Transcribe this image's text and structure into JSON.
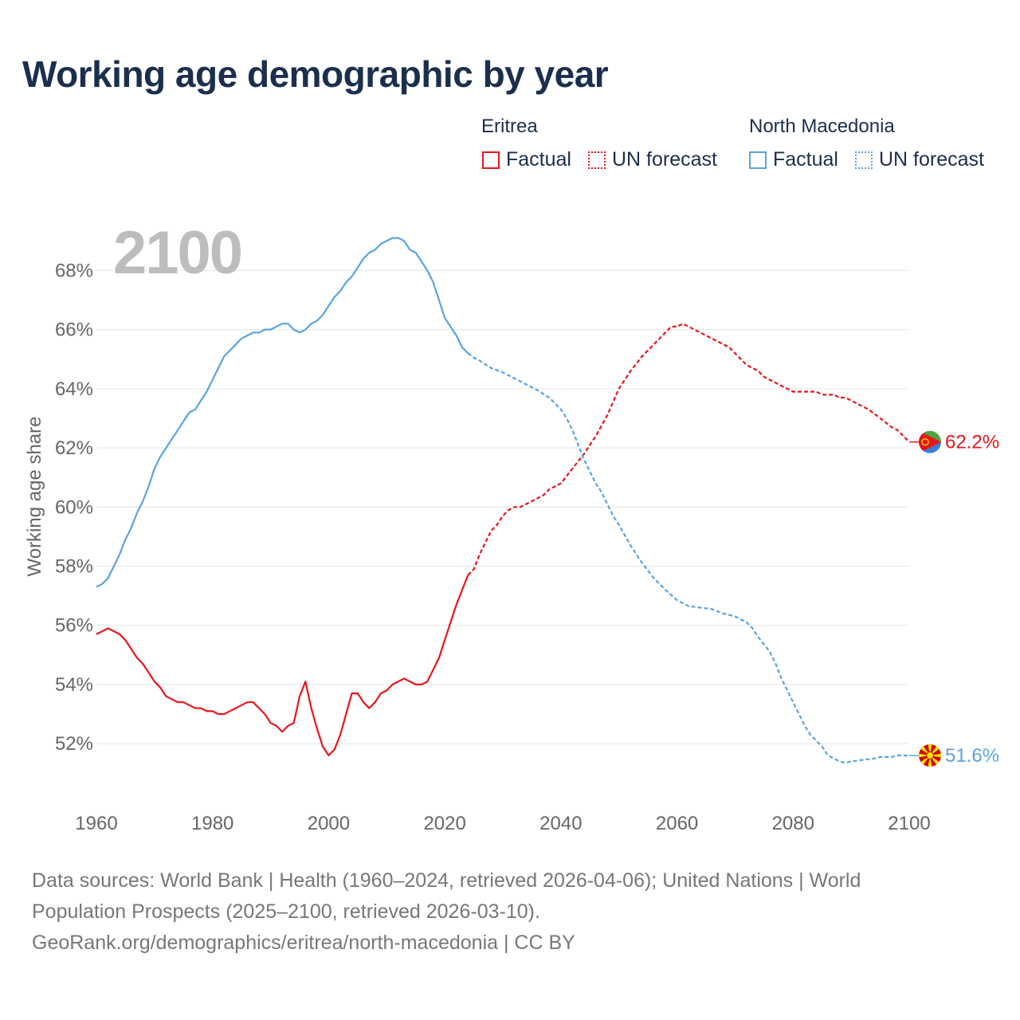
{
  "title": "Working age demographic by year",
  "legend": {
    "groups": [
      {
        "country": "Eritrea",
        "color": "#e8151b",
        "factual_label": "Factual",
        "forecast_label": "UN forecast"
      },
      {
        "country": "North Macedonia",
        "color": "#5aa3e0",
        "factual_label": "Factual",
        "forecast_label": "UN forecast"
      }
    ]
  },
  "footer": {
    "line1": "Data sources: World Bank | Health (1960–2024, retrieved 2026-04-06); United Nations | World",
    "line2": "Population Prospects (2025–2100, retrieved 2026-03-10).",
    "line3": "GeoRank.org/demographics/eritrea/north-macedonia | CC BY"
  },
  "chart_data": {
    "type": "line",
    "title": "Working age demographic by year",
    "year_watermark": "2100",
    "ylabel": "Working age share",
    "xlabel": "",
    "xlim": [
      1960,
      2100
    ],
    "ylim": [
      50.2,
      69.6
    ],
    "x_ticks": [
      1960,
      1980,
      2000,
      2020,
      2040,
      2060,
      2080,
      2100
    ],
    "y_ticks": [
      52,
      54,
      56,
      58,
      60,
      62,
      64,
      66,
      68
    ],
    "y_tick_labels": [
      "52%",
      "54%",
      "56%",
      "58%",
      "60%",
      "62%",
      "64%",
      "66%",
      "68%"
    ],
    "grid": true,
    "factual_until": 2024,
    "series": [
      {
        "name": "Eritrea",
        "color": "#e8151b",
        "end_label": "62.2%",
        "points": [
          [
            1960,
            55.7
          ],
          [
            1962,
            55.9
          ],
          [
            1964,
            55.7
          ],
          [
            1965,
            55.5
          ],
          [
            1967,
            54.9
          ],
          [
            1968,
            54.7
          ],
          [
            1970,
            54.1
          ],
          [
            1971,
            53.9
          ],
          [
            1972,
            53.6
          ],
          [
            1974,
            53.4
          ],
          [
            1975,
            53.4
          ],
          [
            1977,
            53.2
          ],
          [
            1978,
            53.2
          ],
          [
            1979,
            53.1
          ],
          [
            1980,
            53.1
          ],
          [
            1981,
            53.0
          ],
          [
            1982,
            53.0
          ],
          [
            1984,
            53.2
          ],
          [
            1986,
            53.4
          ],
          [
            1987,
            53.4
          ],
          [
            1989,
            53.0
          ],
          [
            1990,
            52.7
          ],
          [
            1991,
            52.6
          ],
          [
            1992,
            52.4
          ],
          [
            1993,
            52.6
          ],
          [
            1994,
            52.7
          ],
          [
            1995,
            53.6
          ],
          [
            1996,
            54.1
          ],
          [
            1997,
            53.2
          ],
          [
            1998,
            52.5
          ],
          [
            1999,
            51.9
          ],
          [
            2000,
            51.6
          ],
          [
            2001,
            51.8
          ],
          [
            2002,
            52.3
          ],
          [
            2003,
            53.0
          ],
          [
            2004,
            53.7
          ],
          [
            2005,
            53.7
          ],
          [
            2006,
            53.4
          ],
          [
            2007,
            53.2
          ],
          [
            2008,
            53.4
          ],
          [
            2009,
            53.7
          ],
          [
            2010,
            53.8
          ],
          [
            2011,
            54.0
          ],
          [
            2013,
            54.2
          ],
          [
            2015,
            54.0
          ],
          [
            2016,
            54.0
          ],
          [
            2017,
            54.1
          ],
          [
            2019,
            54.9
          ],
          [
            2020,
            55.5
          ],
          [
            2022,
            56.7
          ],
          [
            2024,
            57.7
          ],
          [
            2025,
            57.9
          ],
          [
            2026,
            58.4
          ],
          [
            2028,
            59.2
          ],
          [
            2029,
            59.4
          ],
          [
            2030,
            59.7
          ],
          [
            2031,
            59.9
          ],
          [
            2032,
            60.0
          ],
          [
            2033,
            60.0
          ],
          [
            2035,
            60.2
          ],
          [
            2037,
            60.4
          ],
          [
            2038,
            60.6
          ],
          [
            2040,
            60.8
          ],
          [
            2042,
            61.3
          ],
          [
            2044,
            61.8
          ],
          [
            2046,
            62.4
          ],
          [
            2048,
            63.1
          ],
          [
            2050,
            64.0
          ],
          [
            2052,
            64.6
          ],
          [
            2054,
            65.1
          ],
          [
            2056,
            65.5
          ],
          [
            2058,
            65.9
          ],
          [
            2059,
            66.1
          ],
          [
            2060,
            66.1
          ],
          [
            2061,
            66.2
          ],
          [
            2063,
            66.0
          ],
          [
            2065,
            65.8
          ],
          [
            2067,
            65.6
          ],
          [
            2069,
            65.4
          ],
          [
            2071,
            65.0
          ],
          [
            2072,
            64.8
          ],
          [
            2074,
            64.6
          ],
          [
            2075,
            64.4
          ],
          [
            2077,
            64.2
          ],
          [
            2079,
            64.0
          ],
          [
            2080,
            63.9
          ],
          [
            2083,
            63.9
          ],
          [
            2084,
            63.9
          ],
          [
            2085,
            63.8
          ],
          [
            2087,
            63.8
          ],
          [
            2088,
            63.7
          ],
          [
            2089,
            63.7
          ],
          [
            2091,
            63.5
          ],
          [
            2093,
            63.3
          ],
          [
            2095,
            63.0
          ],
          [
            2097,
            62.7
          ],
          [
            2098,
            62.6
          ],
          [
            2099,
            62.4
          ],
          [
            2100,
            62.2
          ]
        ]
      },
      {
        "name": "North Macedonia",
        "color": "#5aa3e0",
        "end_label": "51.6%",
        "points": [
          [
            1960,
            57.3
          ],
          [
            1961,
            57.4
          ],
          [
            1962,
            57.6
          ],
          [
            1963,
            58.0
          ],
          [
            1964,
            58.4
          ],
          [
            1965,
            58.9
          ],
          [
            1966,
            59.3
          ],
          [
            1967,
            59.8
          ],
          [
            1968,
            60.2
          ],
          [
            1969,
            60.7
          ],
          [
            1970,
            61.3
          ],
          [
            1971,
            61.7
          ],
          [
            1972,
            62.0
          ],
          [
            1973,
            62.3
          ],
          [
            1974,
            62.6
          ],
          [
            1975,
            62.9
          ],
          [
            1976,
            63.2
          ],
          [
            1977,
            63.3
          ],
          [
            1978,
            63.6
          ],
          [
            1979,
            63.9
          ],
          [
            1980,
            64.3
          ],
          [
            1981,
            64.7
          ],
          [
            1982,
            65.1
          ],
          [
            1983,
            65.3
          ],
          [
            1984,
            65.5
          ],
          [
            1985,
            65.7
          ],
          [
            1986,
            65.8
          ],
          [
            1987,
            65.9
          ],
          [
            1988,
            65.9
          ],
          [
            1989,
            66.0
          ],
          [
            1990,
            66.0
          ],
          [
            1991,
            66.1
          ],
          [
            1992,
            66.2
          ],
          [
            1993,
            66.2
          ],
          [
            1994,
            66.0
          ],
          [
            1995,
            65.9
          ],
          [
            1996,
            66.0
          ],
          [
            1997,
            66.2
          ],
          [
            1998,
            66.3
          ],
          [
            1999,
            66.5
          ],
          [
            2000,
            66.8
          ],
          [
            2001,
            67.1
          ],
          [
            2002,
            67.3
          ],
          [
            2003,
            67.6
          ],
          [
            2004,
            67.8
          ],
          [
            2005,
            68.1
          ],
          [
            2006,
            68.4
          ],
          [
            2007,
            68.6
          ],
          [
            2008,
            68.7
          ],
          [
            2009,
            68.9
          ],
          [
            2010,
            69.0
          ],
          [
            2011,
            69.1
          ],
          [
            2012,
            69.1
          ],
          [
            2013,
            69.0
          ],
          [
            2014,
            68.7
          ],
          [
            2015,
            68.6
          ],
          [
            2016,
            68.3
          ],
          [
            2017,
            68.0
          ],
          [
            2018,
            67.6
          ],
          [
            2019,
            67.0
          ],
          [
            2020,
            66.4
          ],
          [
            2021,
            66.1
          ],
          [
            2022,
            65.8
          ],
          [
            2023,
            65.4
          ],
          [
            2024,
            65.2
          ],
          [
            2025,
            65.05
          ],
          [
            2026,
            64.95
          ],
          [
            2028,
            64.7
          ],
          [
            2030,
            64.55
          ],
          [
            2032,
            64.35
          ],
          [
            2034,
            64.15
          ],
          [
            2036,
            63.95
          ],
          [
            2038,
            63.7
          ],
          [
            2040,
            63.3
          ],
          [
            2041,
            63.0
          ],
          [
            2042,
            62.6
          ],
          [
            2043,
            62.1
          ],
          [
            2044,
            61.6
          ],
          [
            2045,
            61.2
          ],
          [
            2046,
            60.8
          ],
          [
            2047,
            60.5
          ],
          [
            2048,
            60.1
          ],
          [
            2049,
            59.7
          ],
          [
            2050,
            59.4
          ],
          [
            2052,
            58.7
          ],
          [
            2054,
            58.1
          ],
          [
            2056,
            57.6
          ],
          [
            2058,
            57.2
          ],
          [
            2060,
            56.85
          ],
          [
            2062,
            56.65
          ],
          [
            2064,
            56.6
          ],
          [
            2066,
            56.55
          ],
          [
            2068,
            56.4
          ],
          [
            2070,
            56.3
          ],
          [
            2072,
            56.1
          ],
          [
            2073,
            55.9
          ],
          [
            2074,
            55.6
          ],
          [
            2076,
            55.1
          ],
          [
            2077,
            54.7
          ],
          [
            2078,
            54.2
          ],
          [
            2080,
            53.4
          ],
          [
            2082,
            52.6
          ],
          [
            2083,
            52.3
          ],
          [
            2085,
            51.9
          ],
          [
            2086,
            51.6
          ],
          [
            2088,
            51.4
          ],
          [
            2089,
            51.35
          ],
          [
            2090,
            51.4
          ],
          [
            2092,
            51.45
          ],
          [
            2094,
            51.5
          ],
          [
            2095,
            51.55
          ],
          [
            2097,
            51.55
          ],
          [
            2098,
            51.6
          ],
          [
            2100,
            51.6
          ]
        ]
      }
    ]
  }
}
